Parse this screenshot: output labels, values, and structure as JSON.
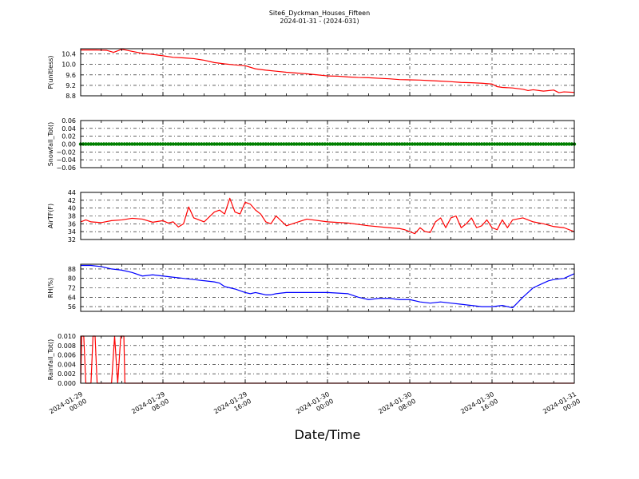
{
  "figure": {
    "title_line1": "Site6_Dyckman_Houses_Fifteen",
    "title_line2": "2024-01-31 - (2024-031)",
    "xlabel": "Date/Time",
    "x_tick_labels": [
      [
        "2024-01-29",
        "00:00"
      ],
      [
        "2024-01-29",
        "08:00"
      ],
      [
        "2024-01-29",
        "16:00"
      ],
      [
        "2024-01-30",
        "00:00"
      ],
      [
        "2024-01-30",
        "08:00"
      ],
      [
        "2024-01-30",
        "16:00"
      ],
      [
        "2024-01-31",
        "00:00"
      ]
    ]
  },
  "chart_data": [
    {
      "type": "line",
      "ylabel": "P(unitless)",
      "color": "#ff0000",
      "ylim": [
        8.8,
        10.6
      ],
      "yticks": [
        8.8,
        9.2,
        9.6,
        10.0,
        10.4
      ],
      "ytick_labels": [
        "8.8",
        "9.2",
        "9.6",
        "10.0",
        "10.4"
      ],
      "xlim": [
        0,
        48
      ],
      "grid": true,
      "series": [
        {
          "x": [
            0,
            1.5,
            2.5,
            3.2,
            4,
            5,
            6,
            7,
            8,
            9,
            10,
            11,
            12,
            13,
            14,
            15,
            16,
            17,
            18,
            19,
            20,
            21,
            22,
            23,
            24,
            25,
            26,
            27,
            28,
            29,
            30,
            31,
            32,
            33,
            34,
            35,
            36,
            37,
            38,
            39,
            40,
            40.5,
            41,
            42,
            43,
            43.5,
            44,
            45,
            46,
            46.5,
            47,
            48
          ],
          "y": [
            10.55,
            10.55,
            10.54,
            10.46,
            10.58,
            10.5,
            10.42,
            10.38,
            10.33,
            10.27,
            10.25,
            10.22,
            10.16,
            10.07,
            10.02,
            9.98,
            9.95,
            9.83,
            9.78,
            9.74,
            9.7,
            9.67,
            9.64,
            9.6,
            9.56,
            9.55,
            9.52,
            9.5,
            9.49,
            9.47,
            9.45,
            9.42,
            9.41,
            9.4,
            9.38,
            9.36,
            9.34,
            9.31,
            9.3,
            9.28,
            9.25,
            9.15,
            9.12,
            9.1,
            9.05,
            9.0,
            9.03,
            8.98,
            9.02,
            8.92,
            8.95,
            8.93
          ]
        }
      ]
    },
    {
      "type": "scatter",
      "ylabel": "Snowfall_Tot()",
      "color": "#008000",
      "ylim": [
        -0.06,
        0.06
      ],
      "yticks": [
        -0.06,
        -0.04,
        -0.02,
        0.0,
        0.02,
        0.04,
        0.06
      ],
      "ytick_labels": [
        "−0.06",
        "−0.04",
        "−0.02",
        "0.00",
        "0.02",
        "0.04",
        "0.06"
      ],
      "xlim": [
        0,
        48
      ],
      "grid": true,
      "series": [
        {
          "x_range": [
            0,
            48
          ],
          "x_step": 0.25,
          "y": 0.0
        }
      ]
    },
    {
      "type": "line",
      "ylabel": "AirTF(F)",
      "color": "#ff0000",
      "ylim": [
        32,
        44
      ],
      "yticks": [
        32,
        34,
        36,
        38,
        40,
        42,
        44
      ],
      "ytick_labels": [
        "32",
        "34",
        "36",
        "38",
        "40",
        "42",
        "44"
      ],
      "xlim": [
        0,
        48
      ],
      "grid": true,
      "series": [
        {
          "x": [
            0,
            0.5,
            1,
            2,
            3,
            4,
            5,
            6,
            7,
            8,
            8.5,
            9,
            9.5,
            10,
            10.5,
            11,
            12,
            13,
            13.5,
            14,
            14.5,
            15,
            15.5,
            16,
            16.5,
            17,
            17.5,
            18,
            18.5,
            19,
            20,
            22,
            24,
            26,
            28,
            30,
            31,
            31.5,
            32,
            32.5,
            33,
            33.5,
            34,
            34.5,
            35,
            35.5,
            36,
            36.5,
            37,
            37.5,
            38,
            38.5,
            39,
            39.5,
            40,
            40.5,
            41,
            41.5,
            42,
            43,
            44,
            45,
            46,
            47,
            48
          ],
          "y": [
            36.5,
            37,
            36.5,
            36.3,
            36.8,
            37,
            37.4,
            37.2,
            36.4,
            36.8,
            36.2,
            36.5,
            35.2,
            36,
            40.3,
            37.5,
            36.5,
            39,
            39.5,
            38.5,
            42.5,
            39,
            38.5,
            41.5,
            41,
            39.5,
            38.5,
            36.5,
            36,
            38,
            35.5,
            37.2,
            36.5,
            36.2,
            35.5,
            35.0,
            34.8,
            34.5,
            34,
            33.5,
            35,
            34,
            33.8,
            36.5,
            37.5,
            35,
            37.5,
            38,
            35,
            36,
            37.5,
            35,
            35.5,
            37,
            35,
            34.5,
            37,
            35,
            37,
            37.5,
            36.5,
            36,
            35.3,
            35,
            34
          ]
        }
      ]
    },
    {
      "type": "line",
      "ylabel": "RH(%)",
      "color": "#0000ff",
      "ylim": [
        52,
        92
      ],
      "yticks": [
        56,
        64,
        72,
        80,
        88
      ],
      "ytick_labels": [
        "56",
        "64",
        "72",
        "80",
        "88"
      ],
      "xlim": [
        0,
        48
      ],
      "grid": true,
      "series": [
        {
          "x": [
            0,
            1,
            2,
            3,
            4,
            5,
            6,
            7,
            8,
            9,
            10,
            11,
            12,
            13,
            13.5,
            14,
            15,
            16,
            16.5,
            17,
            17.5,
            18,
            18.5,
            19,
            20,
            22,
            24,
            26,
            27,
            28,
            29,
            30,
            31,
            32,
            33,
            34,
            35,
            36,
            37,
            38,
            39,
            40,
            41,
            42,
            43,
            43.5,
            44,
            45,
            45.5,
            46,
            47,
            48
          ],
          "y": [
            91,
            91,
            90,
            88,
            87,
            85,
            82,
            83,
            82,
            81,
            80,
            79,
            78,
            77,
            76,
            73,
            71,
            68,
            67,
            68,
            67,
            66,
            66,
            67,
            68,
            68,
            68,
            67,
            64,
            62,
            63,
            63,
            62,
            62,
            60,
            59,
            60,
            59,
            58,
            57,
            56,
            56,
            57,
            55,
            64,
            68,
            72,
            76,
            78,
            79,
            80,
            84
          ]
        }
      ]
    },
    {
      "type": "line",
      "ylabel": "Rainfall_Tot()",
      "color": "#ff0000",
      "ylim": [
        0,
        0.01
      ],
      "yticks": [
        0.0,
        0.002,
        0.004,
        0.006,
        0.008,
        0.01
      ],
      "ytick_labels": [
        "0.000",
        "0.002",
        "0.004",
        "0.006",
        "0.008",
        "0.010"
      ],
      "xlim": [
        0,
        48
      ],
      "grid": true,
      "series": [
        {
          "x": [
            0,
            0.1,
            0.3,
            0.5,
            1.0,
            1.2,
            1.4,
            1.6,
            2.5,
            3.0,
            3.3,
            3.6,
            3.9,
            4.2,
            4.3,
            5.0,
            10.0,
            20.0,
            30.0,
            40.0,
            48.0
          ],
          "y": [
            0,
            0.01,
            0.01,
            0,
            0,
            0.01,
            0.01,
            0,
            0,
            0,
            0.01,
            0,
            0.01,
            0.01,
            0,
            0,
            0,
            0,
            0,
            0,
            0
          ]
        }
      ]
    }
  ]
}
